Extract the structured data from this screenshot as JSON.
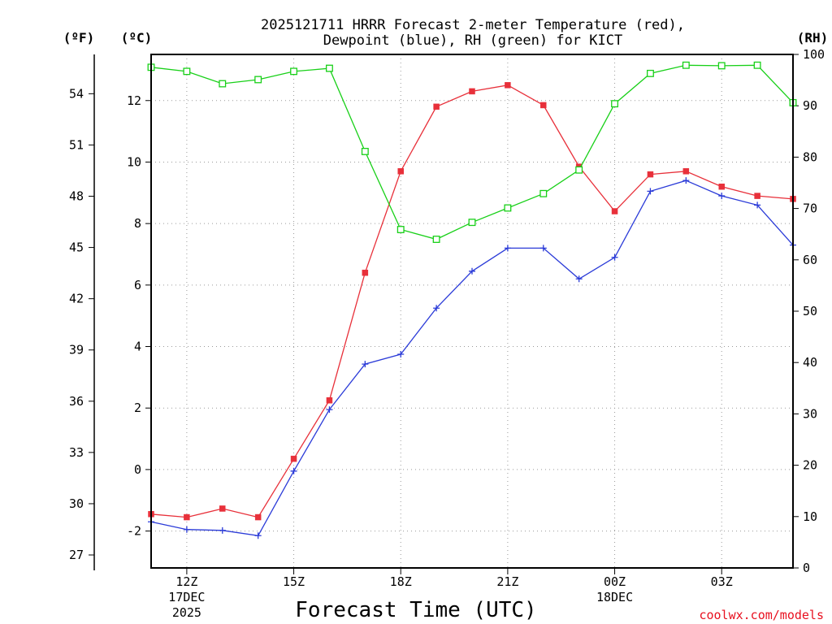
{
  "chart_data": {
    "type": "line",
    "title_lines": [
      "2025121711 HRRR Forecast 2-meter Temperature (red),",
      "Dewpoint (blue), RH (green) for KICT"
    ],
    "unit_labels": {
      "fahrenheit": "(ºF)",
      "celsius": "(ºC)",
      "rh": "(RH)"
    },
    "xlabel": "Forecast Time (UTC)",
    "credit": "coolwx.com/models",
    "x_range": [
      11.0,
      29.0
    ],
    "celsius_range": [
      -3.2,
      13.5
    ],
    "rh_range": [
      0,
      100
    ],
    "fahrenheit_ticks": [
      "27",
      "30",
      "33",
      "36",
      "39",
      "42",
      "45",
      "48",
      "51",
      "54"
    ],
    "celsius_ticks": [
      -2,
      0,
      2,
      4,
      6,
      8,
      10,
      12
    ],
    "rh_ticks": [
      0,
      10,
      20,
      30,
      40,
      50,
      60,
      70,
      80,
      90,
      100
    ],
    "x_ticks": [
      {
        "hour": 12,
        "lines": [
          "12Z",
          "17DEC",
          "2025"
        ]
      },
      {
        "hour": 15,
        "lines": [
          "15Z"
        ]
      },
      {
        "hour": 18,
        "lines": [
          "18Z"
        ]
      },
      {
        "hour": 21,
        "lines": [
          "21Z"
        ]
      },
      {
        "hour": 24,
        "lines": [
          "00Z",
          "18DEC"
        ]
      },
      {
        "hour": 27,
        "lines": [
          "03Z"
        ]
      }
    ],
    "x": [
      11,
      12,
      13,
      14,
      15,
      16,
      17,
      18,
      19,
      20,
      21,
      22,
      23,
      24,
      25,
      26,
      27,
      28,
      29
    ],
    "series": [
      {
        "name": "Temperature",
        "axis": "celsius",
        "color": "#e8303a",
        "marker": "filled-square",
        "values": [
          -1.45,
          -1.55,
          -1.27,
          -1.55,
          0.35,
          2.25,
          6.4,
          9.7,
          11.8,
          12.3,
          12.5,
          11.85,
          9.85,
          8.4,
          9.6,
          9.7,
          9.2,
          8.9,
          8.8
        ]
      },
      {
        "name": "Dewpoint",
        "axis": "celsius",
        "color": "#2b3bd8",
        "marker": "plus",
        "values": [
          -1.7,
          -1.95,
          -1.98,
          -2.15,
          -0.05,
          1.95,
          3.43,
          3.75,
          5.25,
          6.45,
          7.2,
          7.2,
          6.2,
          6.9,
          9.05,
          9.4,
          8.9,
          8.6,
          7.3
        ]
      },
      {
        "name": "RH",
        "axis": "rh",
        "color": "#18d018",
        "marker": "open-square",
        "values": [
          97.5,
          96.7,
          94.3,
          95.1,
          96.7,
          97.3,
          81.1,
          65.9,
          64.0,
          67.3,
          70.1,
          72.9,
          77.5,
          90.4,
          96.3,
          97.9,
          97.8,
          97.9,
          90.6
        ]
      }
    ]
  }
}
